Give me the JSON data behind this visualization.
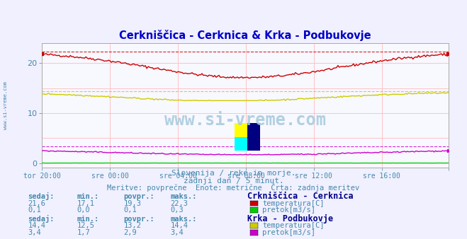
{
  "title": "Cerkniščica - Cerknica & Krka - Podbukovje",
  "bg_color": "#f0f0ff",
  "plot_bg_color": "#f8f8ff",
  "xlabel_ticks": [
    "tor 20:00",
    "sre 00:00",
    "sre 04:00",
    "sre 08:00",
    "sre 12:00",
    "sre 16:00"
  ],
  "xtick_pos": [
    0,
    48,
    96,
    144,
    192,
    240
  ],
  "yticks": [
    0,
    10,
    20
  ],
  "ylim": [
    -0.8,
    24
  ],
  "xlim": [
    0,
    287
  ],
  "n_points": 288,
  "subtitle1": "Slovenija / reke in morje.",
  "subtitle2": "zadnji dan / 5 minut.",
  "subtitle3": "Meritve: povprečne  Enote: metrične  Črta: zadnja meritev",
  "watermark": "www.si-vreme.com",
  "stats": {
    "cerknica_temp": {
      "sedaj": "21,6",
      "min": "17,1",
      "povpr": "19,3",
      "maks": "22,3"
    },
    "cerknica_pretok": {
      "sedaj": "0,1",
      "min": "0,0",
      "povpr": "0,1",
      "maks": "0,3"
    },
    "krka_temp": {
      "sedaj": "14,4",
      "min": "12,5",
      "povpr": "13,2",
      "maks": "14,4"
    },
    "krka_pretok": {
      "sedaj": "3,4",
      "min": "1,7",
      "povpr": "2,9",
      "maks": "3,4"
    }
  },
  "title_color": "#0000cc",
  "subtitle_color": "#4488aa",
  "label_color": "#4488aa",
  "bold_label_color": "#000088",
  "axis_color": "#aaaaaa",
  "grid_color": "#ffbbbb",
  "tick_color": "#4488aa",
  "watermark_color": "#aaccdd",
  "sidebar_color": "#4488aa",
  "line_colors": {
    "cerknica_temp": "#cc0000",
    "cerknica_pretok": "#00cc00",
    "krka_temp": "#cccc00",
    "krka_pretok": "#cc00cc"
  },
  "crknica_temp_maks": 22.3,
  "krka_temp_maks": 14.4,
  "krka_pretok_maks": 3.4
}
